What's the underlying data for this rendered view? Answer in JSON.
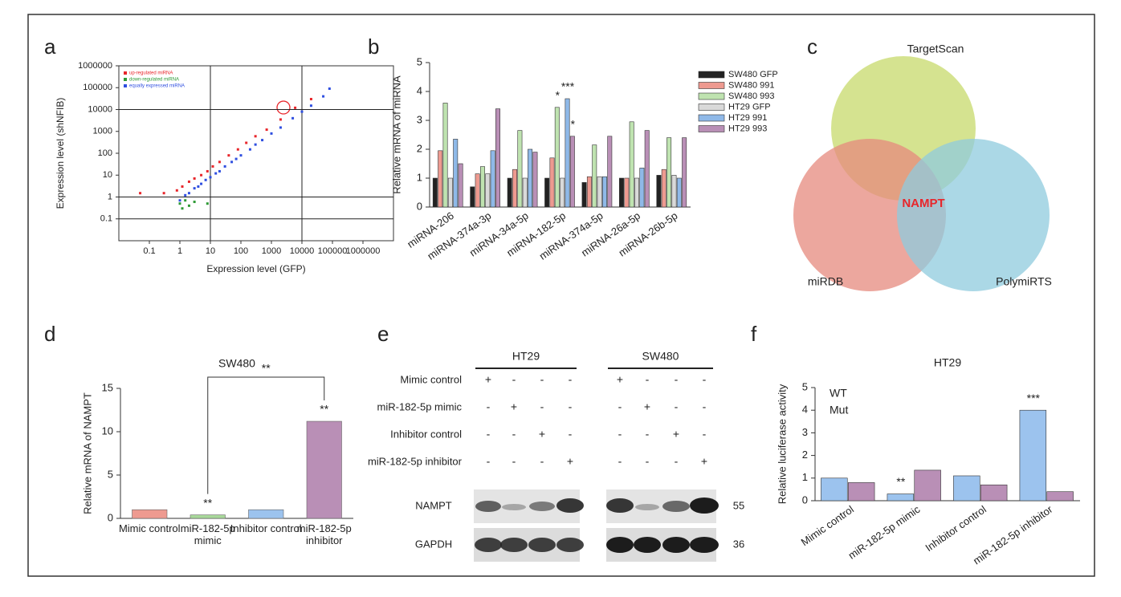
{
  "chart_data": [
    {
      "type": "scatter",
      "label": "a",
      "xlabel": "Expression level (GFP)",
      "ylabel": "Expression level (shNFIB)",
      "xscale": "log",
      "yscale": "log",
      "xlim": [
        0.01,
        10000000
      ],
      "ylim": [
        0.01,
        1000000
      ],
      "xticks": [
        0.1,
        1,
        10,
        100,
        1000,
        10000,
        100000,
        1000000
      ],
      "yticks": [
        0.1,
        1,
        10,
        100,
        1000,
        10000,
        100000,
        1000000
      ],
      "hlines": [
        0.1,
        1,
        10000
      ],
      "vlines": [
        10,
        10000
      ],
      "series": [
        {
          "name": "up-regulated miRNA",
          "color": "#e8262b",
          "x": [
            0.05,
            0.3,
            0.8,
            1.2,
            2,
            3,
            5,
            8,
            12,
            20,
            40,
            80,
            150,
            300,
            700,
            2000,
            6000,
            20000
          ],
          "values": [
            1.5,
            1.5,
            2,
            3,
            5,
            7,
            10,
            15,
            25,
            40,
            80,
            150,
            300,
            600,
            1200,
            3500,
            12000,
            30000
          ]
        },
        {
          "name": "down-regulated miRNA",
          "color": "#2e9a35",
          "x": [
            1,
            1.2,
            1.5,
            2,
            3,
            8
          ],
          "values": [
            0.5,
            0.3,
            0.7,
            0.4,
            0.6,
            0.5
          ]
        },
        {
          "name": "equally expressed miRNA",
          "color": "#2f4fe0",
          "x": [
            1,
            1.5,
            2,
            3,
            4,
            5,
            7,
            10,
            15,
            20,
            30,
            50,
            70,
            100,
            200,
            300,
            500,
            1000,
            2000,
            5000,
            10000,
            20000,
            50000,
            80000
          ],
          "values": [
            0.7,
            1.2,
            1.5,
            2.5,
            3,
            4,
            6,
            8,
            12,
            15,
            25,
            40,
            55,
            80,
            150,
            250,
            400,
            800,
            1500,
            4000,
            8000,
            15000,
            40000,
            90000
          ]
        }
      ]
    },
    {
      "type": "bar",
      "label": "b",
      "ylabel": "Relative mRNA of miRNA",
      "ylim": [
        0,
        5
      ],
      "yticks": [
        0,
        1,
        2,
        3,
        4,
        5
      ],
      "categories": [
        "miRNA-206",
        "miRNA-374a-3p",
        "miRNA-34a-5p",
        "miRNA-182-5p",
        "miRNA-374a-5p",
        "miRNA-26a-5p",
        "miRNA-26b-5p"
      ],
      "series": [
        {
          "name": "SW480 GFP",
          "color": "#222222",
          "values": [
            1.0,
            0.7,
            1.0,
            1.0,
            0.85,
            1.0,
            1.1
          ]
        },
        {
          "name": "SW480 991",
          "color": "#ee9a90",
          "values": [
            1.95,
            1.15,
            1.3,
            1.7,
            1.05,
            1.0,
            1.3
          ]
        },
        {
          "name": "SW480 993",
          "color": "#bfe3b0",
          "values": [
            3.6,
            1.4,
            2.65,
            3.45,
            2.15,
            2.95,
            2.4
          ]
        },
        {
          "name": "HT29 GFP",
          "color": "#d9d9d9",
          "values": [
            1.0,
            1.15,
            1.0,
            1.0,
            1.05,
            1.0,
            1.1
          ]
        },
        {
          "name": "HT29 991",
          "color": "#8fb9e8",
          "values": [
            2.35,
            1.95,
            2.0,
            3.75,
            1.05,
            1.35,
            1.0
          ]
        },
        {
          "name": "HT29 993",
          "color": "#b98fb6",
          "values": [
            1.5,
            3.4,
            1.9,
            2.45,
            2.45,
            2.65,
            2.4
          ]
        }
      ],
      "annotations": [
        {
          "text": "*",
          "category": 3,
          "series": 2
        },
        {
          "text": "***",
          "category": 3,
          "series": 4
        },
        {
          "text": "*",
          "category": 3,
          "series": 5
        }
      ]
    },
    {
      "type": "bar",
      "label": "d",
      "title": "SW480",
      "ylabel": "Relative mRNA of NAMPT",
      "ylim": [
        0,
        15
      ],
      "yticks": [
        0,
        5,
        10,
        15
      ],
      "categories": [
        "Mimic control",
        "miR-182-5p mimic",
        "Inhibitor control",
        "miR-182-5p inhibitor"
      ],
      "values": [
        1.0,
        0.4,
        1.0,
        11.2
      ],
      "colors": [
        "#ee9a90",
        "#a8d89a",
        "#9cc3ee",
        "#b98fb6"
      ],
      "annotations": [
        {
          "text": "**",
          "category": 1
        },
        {
          "text": "**",
          "category": 3
        }
      ],
      "bracket": {
        "text": "**",
        "between": [
          1,
          3
        ]
      }
    },
    {
      "type": "bar",
      "label": "f",
      "title": "HT29",
      "ylabel": "Relative luciferase activity",
      "ylim": [
        0,
        5
      ],
      "yticks": [
        0,
        1,
        2,
        3,
        4,
        5
      ],
      "categories": [
        "Mimic control",
        "miR-182-5p mimic",
        "Inhibitor control",
        "miR-182-5p inhibitor"
      ],
      "legend_style": "text",
      "series": [
        {
          "name": "WT",
          "color": "#9cc3ee",
          "values": [
            1.0,
            0.3,
            1.1,
            4.0
          ]
        },
        {
          "name": "Mut",
          "color": "#b98fb6",
          "values": [
            0.8,
            1.35,
            0.7,
            0.4
          ]
        }
      ],
      "annotations": [
        {
          "text": "**",
          "category": 1,
          "series": 0
        },
        {
          "text": "***",
          "category": 3,
          "series": 0
        }
      ]
    }
  ],
  "venn": {
    "label": "c",
    "sets": [
      "TargetScan",
      "miRDB",
      "PolymiRTS"
    ],
    "center": "NAMPT"
  },
  "blot": {
    "label": "e",
    "groups": [
      "HT29",
      "SW480"
    ],
    "rows": [
      {
        "label": "Mimic control",
        "signs": [
          "+",
          "-",
          "-",
          "-",
          "+",
          "-",
          "-",
          "-"
        ]
      },
      {
        "label": "miR-182-5p mimic",
        "signs": [
          "-",
          "+",
          "-",
          "-",
          "-",
          "+",
          "-",
          "-"
        ]
      },
      {
        "label": "Inhibitor control",
        "signs": [
          "-",
          "-",
          "+",
          "-",
          "-",
          "-",
          "+",
          "-"
        ]
      },
      {
        "label": "miR-182-5p inhibitor",
        "signs": [
          "-",
          "-",
          "-",
          "+",
          "-",
          "-",
          "-",
          "+"
        ]
      }
    ],
    "bands": [
      {
        "label": "NAMPT",
        "size": 55
      },
      {
        "label": "GAPDH",
        "size": 36
      }
    ]
  }
}
